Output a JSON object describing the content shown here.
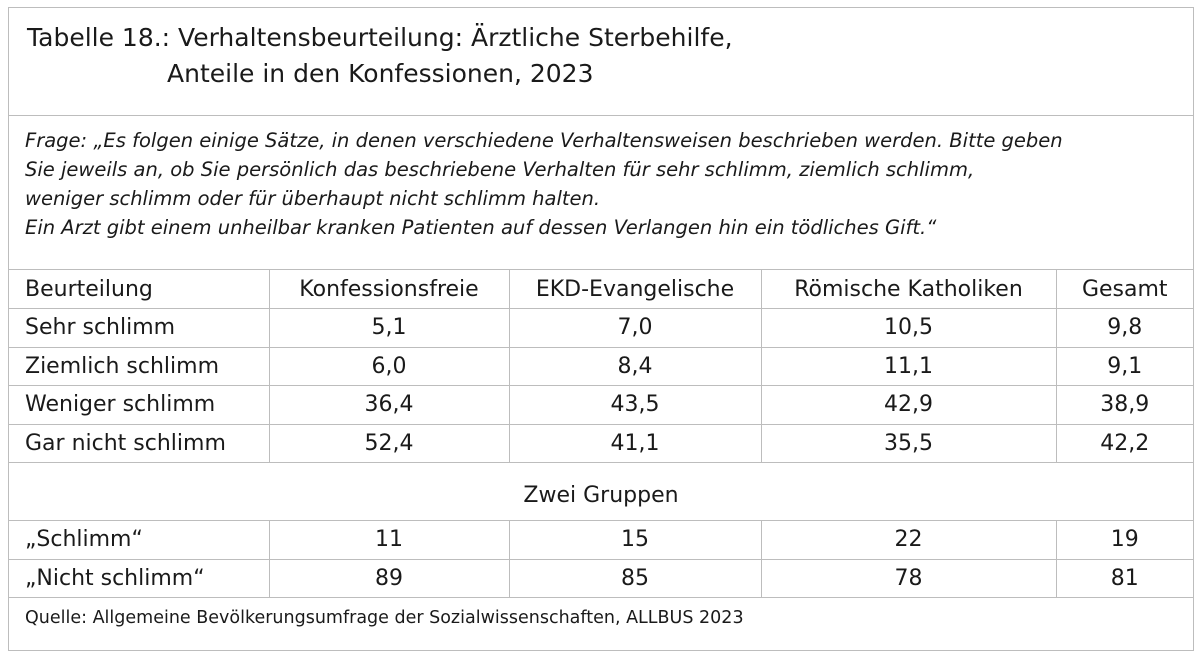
{
  "title": {
    "line1": "Tabelle 18.: Verhaltensbeurteilung: Ärztliche Sterbehilfe,",
    "line2": "Anteile in den Konfessionen, 2023"
  },
  "question": {
    "lines": [
      "Frage: „Es folgen einige Sätze, in denen verschiedene Verhaltensweisen beschrieben werden. Bitte geben",
      "Sie jeweils an, ob Sie persönlich das beschriebene Verhalten für sehr schlimm, ziemlich schlimm,",
      "weniger schlimm oder für überhaupt nicht schlimm halten.",
      "Ein Arzt gibt einem unheilbar kranken Patienten auf dessen Verlangen hin ein tödliches Gift.“"
    ]
  },
  "table": {
    "headers": [
      "Beurteilung",
      "Konfessionsfreie",
      "EKD-Evangelische",
      "Römische Katholiken",
      "Gesamt"
    ],
    "rows": [
      [
        "Sehr schlimm",
        "5,1",
        "7,0",
        "10,5",
        "9,8"
      ],
      [
        "Ziemlich schlimm",
        "6,0",
        "8,4",
        "11,1",
        "9,1"
      ],
      [
        "Weniger schlimm",
        "36,4",
        "43,5",
        "42,9",
        "38,9"
      ],
      [
        "Gar nicht schlimm",
        "52,4",
        "41,1",
        "35,5",
        "42,2"
      ]
    ],
    "group_heading": "Zwei Gruppen",
    "group_rows": [
      [
        "„Schlimm“",
        "11",
        "15",
        "22",
        "19"
      ],
      [
        "„Nicht schlimm“",
        "89",
        "85",
        "78",
        "81"
      ]
    ]
  },
  "source": "Quelle: Allgemeine Bevölkerungsumfrage der Sozialwissenschaften, ALLBUS 2023"
}
